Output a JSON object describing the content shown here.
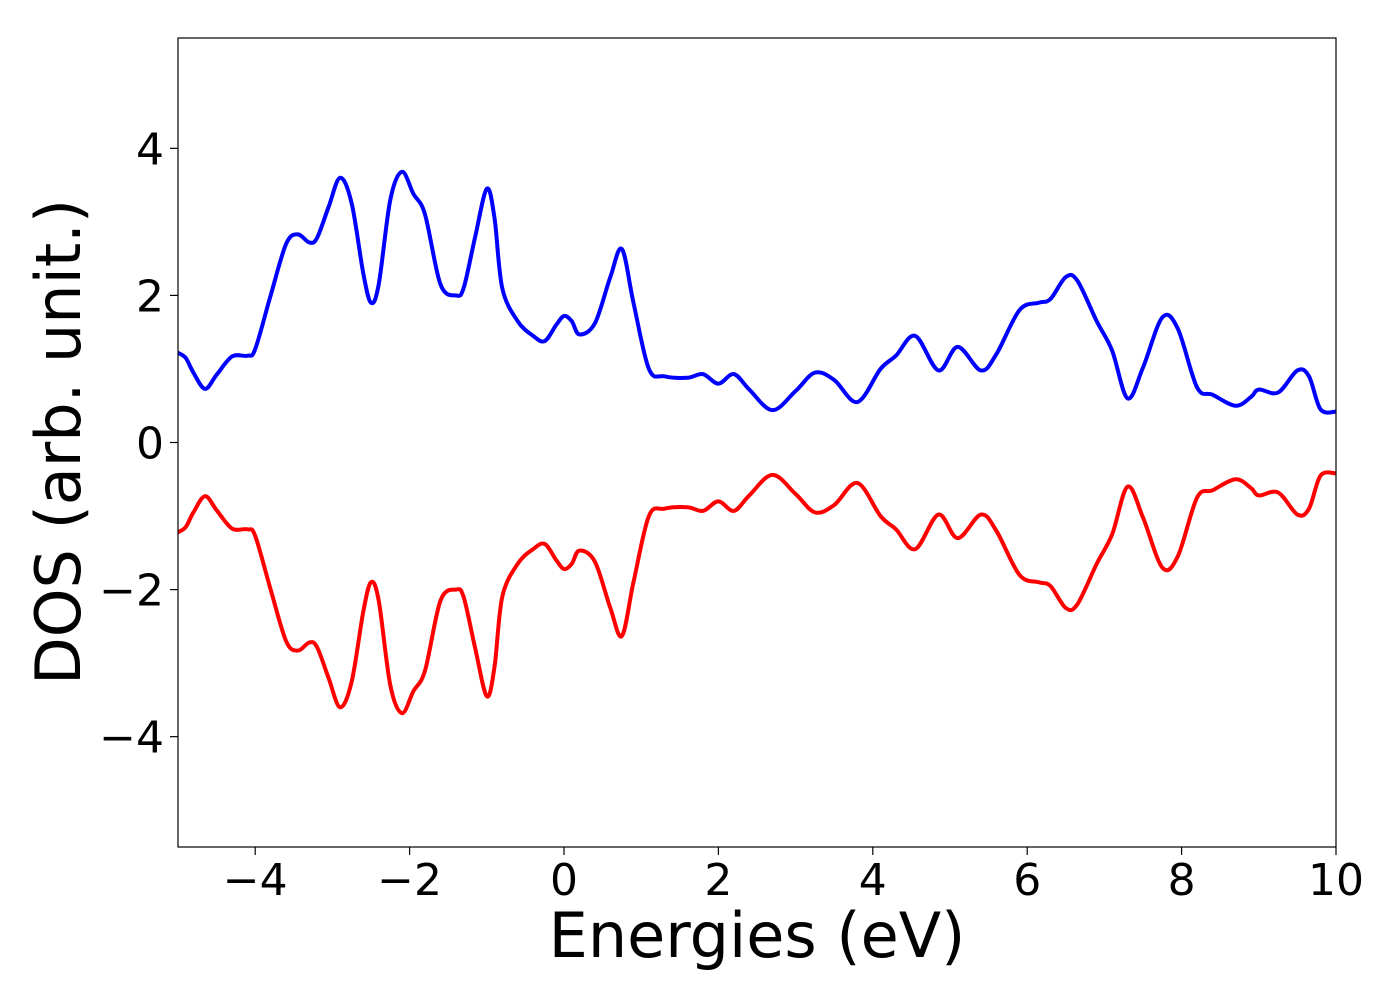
{
  "chart_data": {
    "type": "line",
    "xlabel": "Energies (eV)",
    "ylabel": "DOS (arb. unit.)",
    "xlim": [
      -5,
      10
    ],
    "ylim": [
      -5.5,
      5.5
    ],
    "grid": false,
    "xticks": [
      -4,
      -2,
      0,
      2,
      4,
      6,
      8,
      10
    ],
    "xtick_labels": [
      "−4",
      "−2",
      "0",
      "2",
      "4",
      "6",
      "8",
      "10"
    ],
    "yticks": [
      -4,
      -2,
      0,
      2,
      4
    ],
    "ytick_labels": [
      "−4",
      "−2",
      "0",
      "2",
      "4"
    ],
    "series": [
      {
        "color": "#0000ff",
        "x": [
          -5.0,
          -4.9,
          -4.8,
          -4.65,
          -4.5,
          -4.3,
          -4.1,
          -4.0,
          -3.8,
          -3.6,
          -3.45,
          -3.3,
          -3.2,
          -3.05,
          -2.9,
          -2.75,
          -2.6,
          -2.5,
          -2.4,
          -2.25,
          -2.1,
          -1.95,
          -1.8,
          -1.6,
          -1.4,
          -1.3,
          -1.15,
          -1.0,
          -0.9,
          -0.8,
          -0.6,
          -0.4,
          -0.25,
          -0.1,
          0.0,
          0.1,
          0.2,
          0.4,
          0.6,
          0.75,
          0.9,
          1.1,
          1.3,
          1.6,
          1.8,
          2.0,
          2.2,
          2.4,
          2.7,
          3.0,
          3.25,
          3.5,
          3.8,
          4.1,
          4.3,
          4.55,
          4.85,
          5.1,
          5.4,
          5.6,
          5.9,
          6.15,
          6.3,
          6.5,
          6.65,
          6.9,
          7.1,
          7.3,
          7.5,
          7.75,
          7.95,
          8.2,
          8.4,
          8.7,
          8.9,
          9.0,
          9.25,
          9.5,
          9.65,
          9.8,
          10.0
        ],
        "y": [
          1.22,
          1.15,
          0.95,
          0.73,
          0.92,
          1.17,
          1.18,
          1.27,
          2.0,
          2.7,
          2.83,
          2.72,
          2.78,
          3.2,
          3.6,
          3.25,
          2.3,
          1.9,
          2.15,
          3.3,
          3.68,
          3.38,
          3.1,
          2.15,
          2.0,
          2.1,
          2.8,
          3.45,
          3.05,
          2.1,
          1.65,
          1.45,
          1.38,
          1.6,
          1.72,
          1.65,
          1.47,
          1.62,
          2.25,
          2.63,
          1.9,
          1.0,
          0.9,
          0.88,
          0.93,
          0.8,
          0.93,
          0.72,
          0.44,
          0.7,
          0.95,
          0.85,
          0.55,
          1.0,
          1.18,
          1.45,
          0.98,
          1.3,
          0.98,
          1.2,
          1.8,
          1.9,
          1.95,
          2.25,
          2.2,
          1.65,
          1.25,
          0.6,
          1.02,
          1.7,
          1.55,
          0.75,
          0.65,
          0.5,
          0.62,
          0.72,
          0.68,
          0.98,
          0.9,
          0.45,
          0.42
        ]
      },
      {
        "color": "#ff0000",
        "x": [
          -5.0,
          -4.9,
          -4.8,
          -4.65,
          -4.5,
          -4.3,
          -4.1,
          -4.0,
          -3.8,
          -3.6,
          -3.45,
          -3.3,
          -3.2,
          -3.05,
          -2.9,
          -2.75,
          -2.6,
          -2.5,
          -2.4,
          -2.25,
          -2.1,
          -1.95,
          -1.8,
          -1.6,
          -1.4,
          -1.3,
          -1.15,
          -1.0,
          -0.9,
          -0.8,
          -0.6,
          -0.4,
          -0.25,
          -0.1,
          0.0,
          0.1,
          0.2,
          0.4,
          0.6,
          0.75,
          0.9,
          1.1,
          1.3,
          1.6,
          1.8,
          2.0,
          2.2,
          2.4,
          2.7,
          3.0,
          3.25,
          3.5,
          3.8,
          4.1,
          4.3,
          4.55,
          4.85,
          5.1,
          5.4,
          5.6,
          5.9,
          6.15,
          6.3,
          6.5,
          6.65,
          6.9,
          7.1,
          7.3,
          7.5,
          7.75,
          7.95,
          8.2,
          8.4,
          8.7,
          8.9,
          9.0,
          9.25,
          9.5,
          9.65,
          9.8,
          10.0
        ],
        "y": [
          -1.22,
          -1.15,
          -0.95,
          -0.73,
          -0.92,
          -1.17,
          -1.18,
          -1.27,
          -2.0,
          -2.7,
          -2.83,
          -2.72,
          -2.78,
          -3.2,
          -3.6,
          -3.25,
          -2.3,
          -1.9,
          -2.15,
          -3.3,
          -3.68,
          -3.38,
          -3.1,
          -2.15,
          -2.0,
          -2.1,
          -2.8,
          -3.45,
          -3.05,
          -2.1,
          -1.65,
          -1.45,
          -1.38,
          -1.6,
          -1.72,
          -1.65,
          -1.47,
          -1.62,
          -2.25,
          -2.63,
          -1.9,
          -1.0,
          -0.9,
          -0.88,
          -0.93,
          -0.8,
          -0.93,
          -0.72,
          -0.44,
          -0.7,
          -0.95,
          -0.85,
          -0.55,
          -1.0,
          -1.18,
          -1.45,
          -0.98,
          -1.3,
          -0.98,
          -1.2,
          -1.8,
          -1.9,
          -1.95,
          -2.25,
          -2.2,
          -1.65,
          -1.25,
          -0.6,
          -1.02,
          -1.7,
          -1.55,
          -0.75,
          -0.65,
          -0.5,
          -0.62,
          -0.72,
          -0.68,
          -0.98,
          -0.9,
          -0.45,
          -0.42
        ]
      }
    ]
  }
}
